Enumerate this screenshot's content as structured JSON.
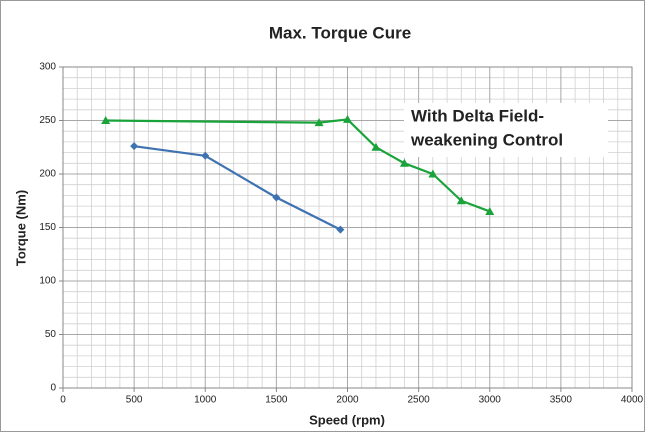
{
  "chart_data": {
    "type": "line",
    "title": "Max. Torque Cure",
    "xlabel": "Speed (rpm)",
    "ylabel": "Torque (Nm)",
    "annotation": [
      "With Delta Field-",
      "weakening Control"
    ],
    "annotation_color": "#1aa33a",
    "series": [
      {
        "color": "#3e72b0",
        "marker": "diamond",
        "x": [
          500,
          1000,
          1500,
          1950
        ],
        "values": [
          226,
          217,
          178,
          148
        ]
      },
      {
        "color": "#1aa33a",
        "marker": "triangle",
        "x": [
          300,
          1800,
          2000,
          2200,
          2400,
          2600,
          2800,
          3000
        ],
        "values": [
          250,
          248,
          251,
          225,
          210,
          200,
          175,
          165
        ]
      }
    ],
    "xlim": [
      0,
      4000
    ],
    "xticks": [
      0,
      500,
      1000,
      1500,
      2000,
      2500,
      3000,
      3500,
      4000
    ],
    "ylim": [
      0,
      300
    ],
    "yticks": [
      0,
      50,
      100,
      150,
      200,
      250,
      300
    ],
    "grid": true
  }
}
